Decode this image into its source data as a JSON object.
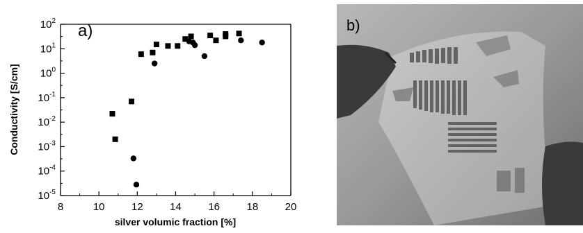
{
  "left_panel": {
    "label": "a)"
  },
  "right_panel": {
    "label": "b)"
  },
  "chart_data": {
    "type": "scatter",
    "title": "",
    "xlabel": "silver volumic fraction [%]",
    "ylabel": "Conductivity [S/cm]",
    "xlim": [
      8,
      20
    ],
    "ylim_exponent": [
      -5,
      2
    ],
    "y_scale": "log",
    "x_ticks": [
      "8",
      "10",
      "12",
      "14",
      "16",
      "18",
      "20"
    ],
    "y_tick_exponents": [
      "2",
      "1",
      "0",
      "-1",
      "-2",
      "-3",
      "-4",
      "-5"
    ],
    "y_tick_base": "10",
    "grid": false,
    "series": [
      {
        "marker": "square",
        "x": [
          10.7,
          10.85,
          11.7,
          12.2,
          12.8,
          13.0,
          13.6,
          14.1,
          14.5,
          14.8,
          15.8,
          16.1,
          16.6,
          16.6,
          17.3
        ],
        "y": [
          0.022,
          0.002,
          0.07,
          6,
          7,
          15,
          13,
          13,
          25,
          32,
          35,
          22,
          40,
          32,
          42
        ]
      },
      {
        "marker": "circle",
        "x": [
          11.8,
          11.95,
          12.9,
          14.7,
          14.9,
          15.0,
          15.5,
          16.6,
          17.4,
          18.5
        ],
        "y": [
          0.00033,
          2.8e-05,
          2.5,
          20,
          18,
          14,
          5,
          38,
          22,
          18
        ]
      }
    ]
  }
}
